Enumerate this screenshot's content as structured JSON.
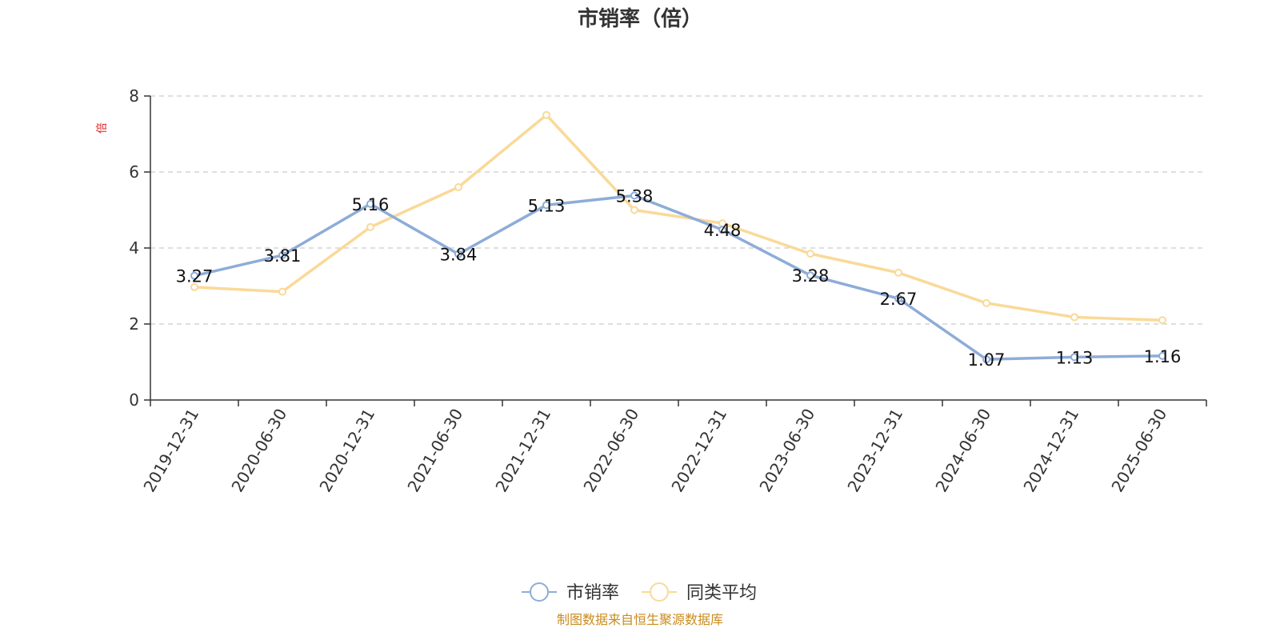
{
  "chart_data": {
    "type": "line",
    "title": "市销率（倍）",
    "ylabel": "倍",
    "ylim": [
      0,
      8
    ],
    "yticks": [
      0,
      2,
      4,
      6,
      8
    ],
    "grid": true,
    "legend_position": "bottom",
    "categories": [
      "2019-12-31",
      "2020-06-30",
      "2020-12-31",
      "2021-06-30",
      "2021-12-31",
      "2022-06-30",
      "2022-12-31",
      "2023-06-30",
      "2023-12-31",
      "2024-06-30",
      "2024-12-31",
      "2025-06-30"
    ],
    "series": [
      {
        "name": "市销率",
        "color": "#8eacd8",
        "values": [
          3.27,
          3.81,
          5.16,
          3.84,
          5.13,
          5.38,
          4.48,
          3.28,
          2.67,
          1.07,
          1.13,
          1.16
        ],
        "labels": [
          "3.27",
          "3.81",
          "5.16",
          "3.84",
          "5.13",
          "5.38",
          "4.48",
          "3.28",
          "2.67",
          "1.07",
          "1.13",
          "1.16"
        ]
      },
      {
        "name": "同类平均",
        "color": "#fad998",
        "values": [
          2.97,
          2.85,
          4.55,
          5.6,
          7.5,
          5.0,
          4.65,
          3.85,
          3.35,
          2.55,
          2.18,
          2.1
        ]
      }
    ],
    "colors": {
      "unit": "#e02020",
      "source": "#c98b1e",
      "axis": "#333333",
      "grid": "#cccccc"
    }
  },
  "footer": {
    "source": "制图数据来自恒生聚源数据库"
  }
}
